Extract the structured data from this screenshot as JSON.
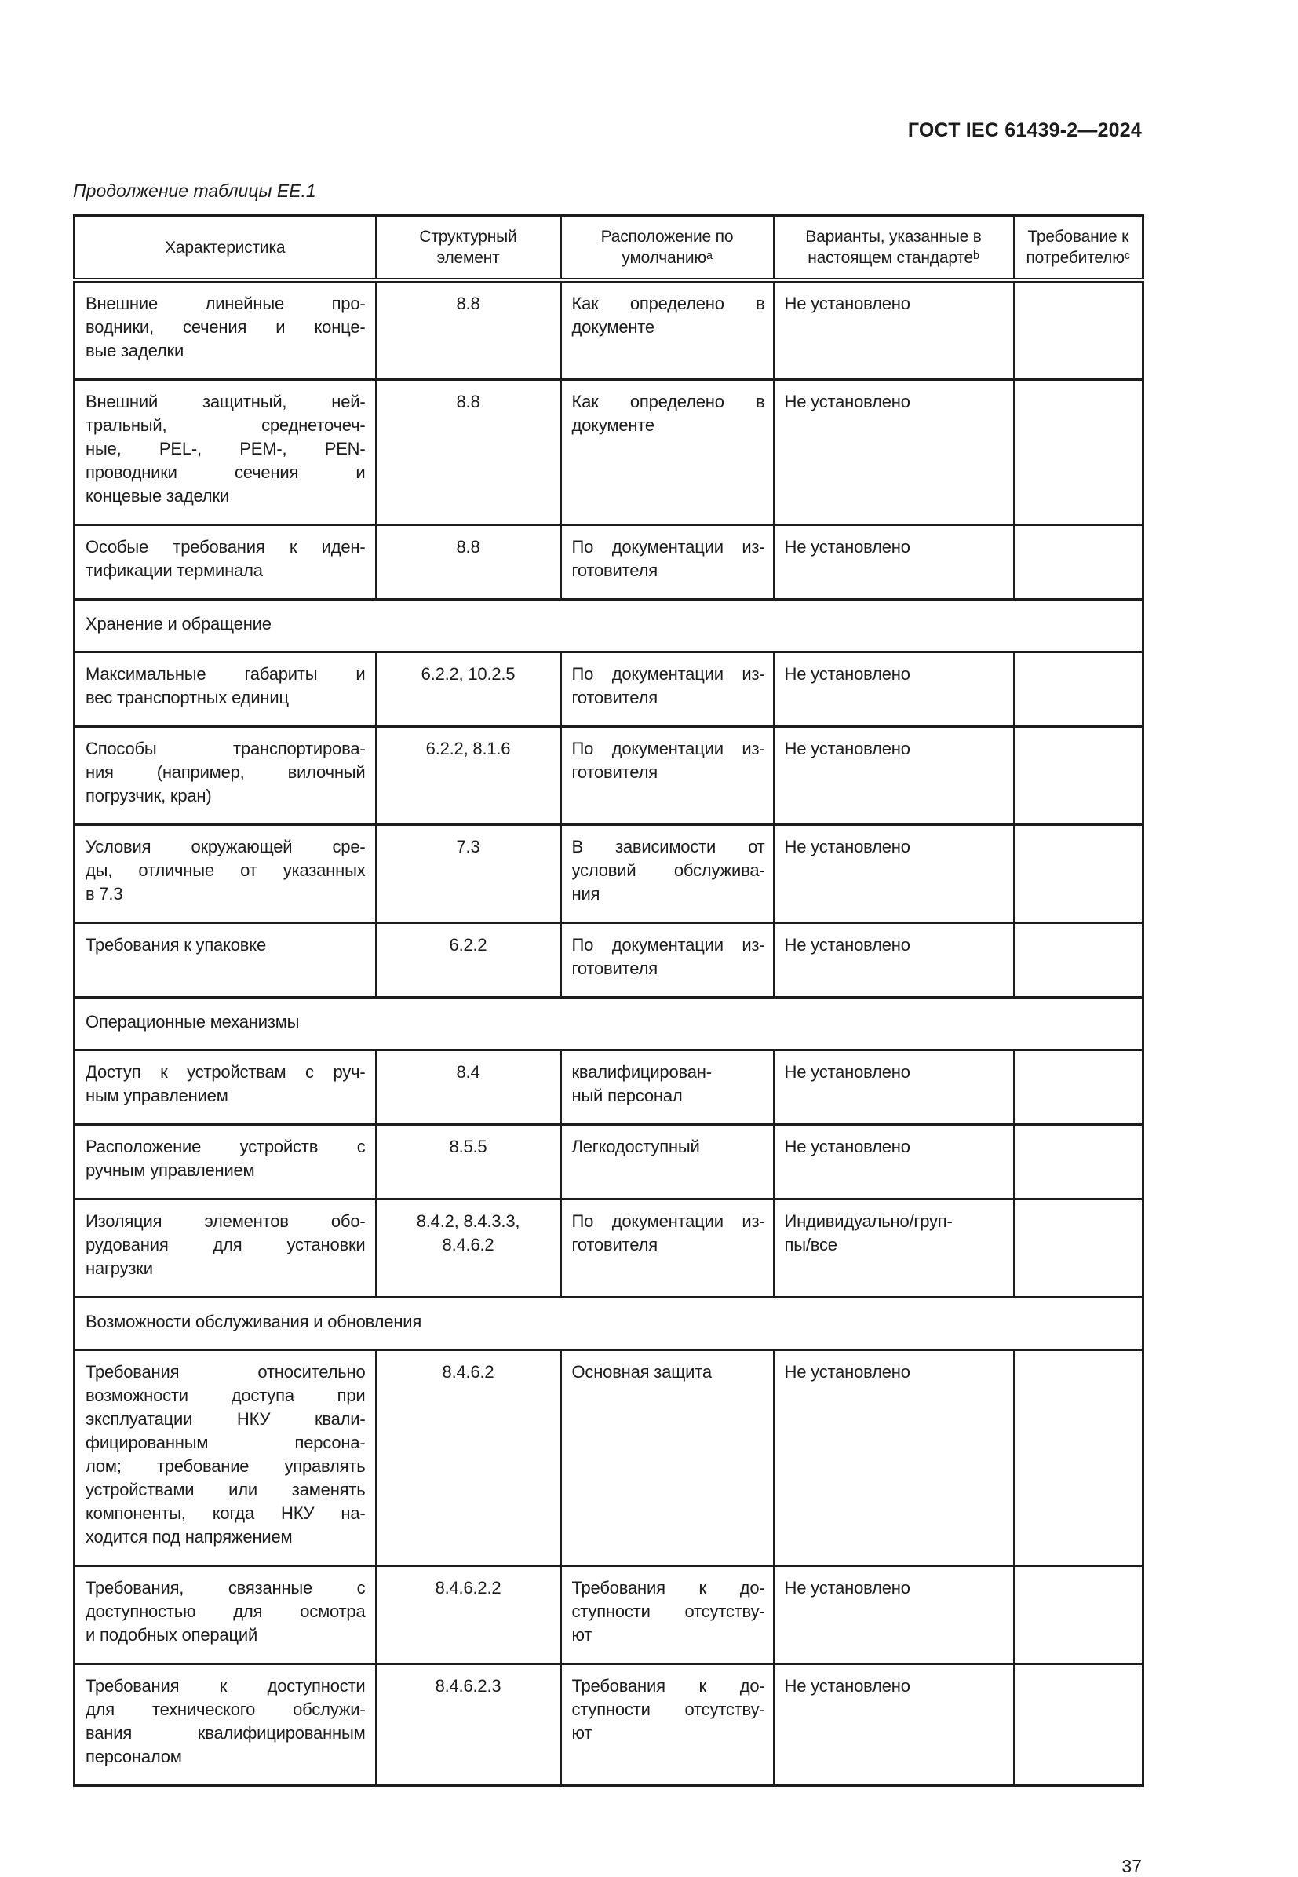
{
  "header": {
    "title": "ГОСТ IEC 61439-2—2024"
  },
  "caption": "Продолжение таблицы ЕЕ.1",
  "footer": {
    "page_number": "37"
  },
  "table": {
    "columns": [
      "Характеристика",
      "Структурный\nэлемент",
      "Расположение по\nумолчаниюᵃ",
      "Варианты, указанные в\nнастоящем стандартеᵇ",
      "Требование к\nпотребителюᶜ"
    ],
    "rows": [
      {
        "type": "data",
        "cells": [
          "Внешние линейные про-\nводники, сечения и конце-\nвые заделки",
          "8.8",
          "Как определено в\nдокументе",
          "Не установлено",
          ""
        ]
      },
      {
        "type": "data",
        "cells": [
          "Внешний защитный, ней-\nтральный, среднеточеч-\nные, PEL-, PEM-, PEN-\nпроводники сечения и\nконцевые заделки",
          "8.8",
          "Как определено в\nдокументе",
          "Не установлено",
          ""
        ]
      },
      {
        "type": "data",
        "cells": [
          "Особые требования к иден-\nтификации терминала",
          "8.8",
          "По документации из-\nготовителя",
          "Не установлено",
          ""
        ]
      },
      {
        "type": "section",
        "label": "Хранение и обращение"
      },
      {
        "type": "data",
        "cells": [
          "Максимальные габариты и\nвес транспортных единиц",
          "6.2.2, 10.2.5",
          "По документации из-\nготовителя",
          "Не установлено",
          ""
        ]
      },
      {
        "type": "data",
        "cells": [
          "Способы транспортирова-\nния (например, вилочный\nпогрузчик, кран)",
          "6.2.2, 8.1.6",
          "По документации из-\nготовителя",
          "Не установлено",
          ""
        ]
      },
      {
        "type": "data",
        "cells": [
          "Условия окружающей сре-\nды, отличные от указанных\nв 7.3",
          "7.3",
          "В зависимости от\nусловий обслужива-\nния",
          "Не установлено",
          ""
        ]
      },
      {
        "type": "data",
        "cells": [
          "Требования к упаковке",
          "6.2.2",
          "По документации из-\nготовителя",
          "Не установлено",
          ""
        ]
      },
      {
        "type": "section",
        "label": "Операционные механизмы"
      },
      {
        "type": "data",
        "cells": [
          "Доступ к устройствам с руч-\nным управлением",
          "8.4",
          "квалифицирован-\nный персонал",
          "Не установлено",
          ""
        ]
      },
      {
        "type": "data",
        "cells": [
          "Расположение устройств с\nручным управлением",
          "8.5.5",
          "Легкодоступный",
          "Не установлено",
          ""
        ]
      },
      {
        "type": "data",
        "cells": [
          "Изоляция элементов обо-\nрудования для установки\nнагрузки",
          "8.4.2, 8.4.3.3,\n8.4.6.2",
          "По документации из-\nготовителя",
          "Индивидуально/груп-\nпы/все",
          ""
        ]
      },
      {
        "type": "section",
        "label": "Возможности обслуживания и обновления"
      },
      {
        "type": "data",
        "cells": [
          "Требования относительно\nвозможности доступа при\nэксплуатации НКУ квали-\nфицированным персона-\nлом; требование управлять\nустройствами или заменять\nкомпоненты, когда НКУ на-\nходится под напряжением",
          "8.4.6.2",
          "Основная защита",
          "Не установлено",
          ""
        ]
      },
      {
        "type": "data",
        "cells": [
          "Требования, связанные с\nдоступностью для осмотра\nи подобных операций",
          "8.4.6.2.2",
          "Требования к до-\nступности отсутству-\nют",
          "Не установлено",
          ""
        ]
      },
      {
        "type": "data",
        "cells": [
          "Требования к доступности\nдля технического обслужи-\nвания квалифицированным\nперсоналом",
          "8.4.6.2.3",
          "Требования к до-\nступности отсутству-\nют",
          "Не установлено",
          ""
        ]
      }
    ]
  }
}
